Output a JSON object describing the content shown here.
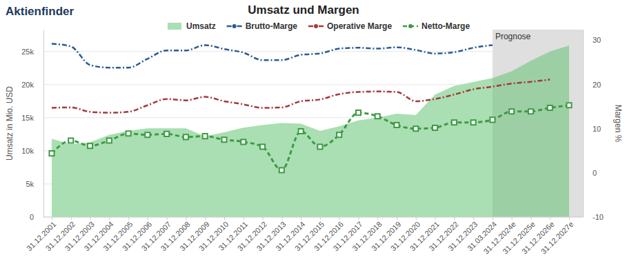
{
  "chart_data": {
    "type": "line",
    "logo": "Aktienfinder",
    "title": "Umsatz und Margen",
    "y_label": "Umsatz in Mio. USD",
    "y2_label": "Margen %",
    "categories": [
      "31.12.2001",
      "31.12.2002",
      "31.12.2003",
      "31.12.2004",
      "31.12.2005",
      "31.12.2006",
      "31.12.2007",
      "31.12.2008",
      "31.12.2009",
      "31.12.2010",
      "31.12.2011",
      "31.12.2012",
      "31.12.2013",
      "31.12.2014",
      "31.12.2015",
      "31.12.2016",
      "31.12.2017",
      "31.12.2018",
      "31.12.2019",
      "31.12.2020",
      "31.12.2021",
      "31.12.2022",
      "31.12.2023",
      "31.03.2024",
      "31.12.2024e",
      "31.12.2025e",
      "31.12.2026e",
      "31.12.2027e"
    ],
    "annotations": [
      {
        "text": "Prognose",
        "x": "31.03.2024"
      }
    ],
    "ylim": [
      0,
      28300
    ],
    "yticks": [
      0,
      {
        "value": 5000,
        "label": "5k"
      },
      {
        "value": 10000,
        "label": "10k"
      },
      {
        "value": 15000,
        "label": "15k"
      },
      {
        "value": 20000,
        "label": "20k"
      },
      {
        "value": 25000,
        "label": "25k"
      }
    ],
    "y2lim": [
      -10,
      32.4
    ],
    "y2ticks": [
      -10,
      0,
      10,
      20,
      30
    ],
    "grid": true,
    "legend": "top",
    "series": [
      {
        "name": "Umsatz",
        "type": "area",
        "color": "#a9dfb2",
        "values": [
          11800,
          11000,
          11300,
          12400,
          13000,
          13400,
          13400,
          13400,
          12200,
          12800,
          13500,
          13900,
          14200,
          14100,
          13000,
          13700,
          14600,
          15000,
          15600,
          15400,
          18500,
          19800,
          20400,
          21000,
          22000,
          23600,
          25000,
          25900
        ]
      },
      {
        "name": "Brutto-Marge",
        "type": "line",
        "axis": "y2",
        "color": "#2a5b92",
        "line_style": "dashdot",
        "marker": "none",
        "values": [
          29.2,
          28.6,
          24.4,
          23.8,
          23.8,
          25.8,
          27.7,
          27.7,
          28.9,
          28.0,
          27.2,
          25.5,
          25.5,
          26.7,
          27.0,
          28.1,
          28.3,
          28.1,
          28.4,
          27.8,
          27.0,
          27.3,
          28.3,
          28.9,
          null,
          null,
          null,
          null
        ]
      },
      {
        "name": "Operative Marge",
        "type": "line",
        "axis": "y2",
        "color": "#a23a3a",
        "line_style": "dashdot",
        "marker": "none",
        "values": [
          14.7,
          14.8,
          13.8,
          13.6,
          13.8,
          15.3,
          16.7,
          16.4,
          17.2,
          16.2,
          15.5,
          14.7,
          14.8,
          16.2,
          16.6,
          17.8,
          18.3,
          18.4,
          18.3,
          16.2,
          16.7,
          17.7,
          18.9,
          19.5,
          20.2,
          20.6,
          21.1,
          null
        ]
      },
      {
        "name": "Netto-Marge",
        "type": "line",
        "axis": "y2",
        "color": "#3d9a44",
        "line_style": "dashed",
        "marker": "square",
        "values": [
          4.4,
          7.3,
          6.1,
          7.3,
          8.9,
          8.6,
          8.8,
          8.1,
          8.3,
          7.5,
          7.0,
          5.9,
          0.6,
          9.4,
          5.9,
          8.6,
          13.6,
          12.8,
          10.8,
          10.0,
          10.2,
          11.4,
          11.4,
          12.0,
          13.9,
          13.9,
          14.7,
          15.3
        ]
      }
    ]
  }
}
